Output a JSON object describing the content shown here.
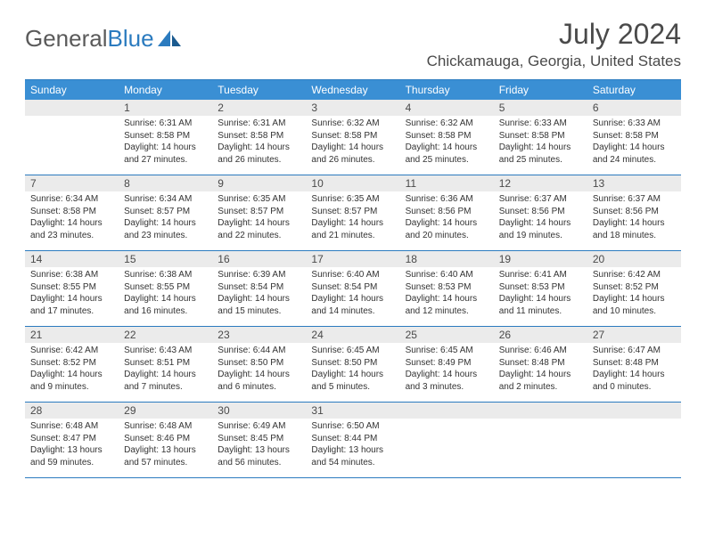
{
  "logo": {
    "text1": "General",
    "text2": "Blue"
  },
  "title": "July 2024",
  "location": "Chickamauga, Georgia, United States",
  "colors": {
    "header_bg": "#3a8fd4",
    "border": "#2b7bbf",
    "daynum_bg": "#ebebeb",
    "text": "#4a4a4a"
  },
  "day_names": [
    "Sunday",
    "Monday",
    "Tuesday",
    "Wednesday",
    "Thursday",
    "Friday",
    "Saturday"
  ],
  "weeks": [
    [
      {
        "num": "",
        "lines": []
      },
      {
        "num": "1",
        "lines": [
          "Sunrise: 6:31 AM",
          "Sunset: 8:58 PM",
          "Daylight: 14 hours and 27 minutes."
        ]
      },
      {
        "num": "2",
        "lines": [
          "Sunrise: 6:31 AM",
          "Sunset: 8:58 PM",
          "Daylight: 14 hours and 26 minutes."
        ]
      },
      {
        "num": "3",
        "lines": [
          "Sunrise: 6:32 AM",
          "Sunset: 8:58 PM",
          "Daylight: 14 hours and 26 minutes."
        ]
      },
      {
        "num": "4",
        "lines": [
          "Sunrise: 6:32 AM",
          "Sunset: 8:58 PM",
          "Daylight: 14 hours and 25 minutes."
        ]
      },
      {
        "num": "5",
        "lines": [
          "Sunrise: 6:33 AM",
          "Sunset: 8:58 PM",
          "Daylight: 14 hours and 25 minutes."
        ]
      },
      {
        "num": "6",
        "lines": [
          "Sunrise: 6:33 AM",
          "Sunset: 8:58 PM",
          "Daylight: 14 hours and 24 minutes."
        ]
      }
    ],
    [
      {
        "num": "7",
        "lines": [
          "Sunrise: 6:34 AM",
          "Sunset: 8:58 PM",
          "Daylight: 14 hours and 23 minutes."
        ]
      },
      {
        "num": "8",
        "lines": [
          "Sunrise: 6:34 AM",
          "Sunset: 8:57 PM",
          "Daylight: 14 hours and 23 minutes."
        ]
      },
      {
        "num": "9",
        "lines": [
          "Sunrise: 6:35 AM",
          "Sunset: 8:57 PM",
          "Daylight: 14 hours and 22 minutes."
        ]
      },
      {
        "num": "10",
        "lines": [
          "Sunrise: 6:35 AM",
          "Sunset: 8:57 PM",
          "Daylight: 14 hours and 21 minutes."
        ]
      },
      {
        "num": "11",
        "lines": [
          "Sunrise: 6:36 AM",
          "Sunset: 8:56 PM",
          "Daylight: 14 hours and 20 minutes."
        ]
      },
      {
        "num": "12",
        "lines": [
          "Sunrise: 6:37 AM",
          "Sunset: 8:56 PM",
          "Daylight: 14 hours and 19 minutes."
        ]
      },
      {
        "num": "13",
        "lines": [
          "Sunrise: 6:37 AM",
          "Sunset: 8:56 PM",
          "Daylight: 14 hours and 18 minutes."
        ]
      }
    ],
    [
      {
        "num": "14",
        "lines": [
          "Sunrise: 6:38 AM",
          "Sunset: 8:55 PM",
          "Daylight: 14 hours and 17 minutes."
        ]
      },
      {
        "num": "15",
        "lines": [
          "Sunrise: 6:38 AM",
          "Sunset: 8:55 PM",
          "Daylight: 14 hours and 16 minutes."
        ]
      },
      {
        "num": "16",
        "lines": [
          "Sunrise: 6:39 AM",
          "Sunset: 8:54 PM",
          "Daylight: 14 hours and 15 minutes."
        ]
      },
      {
        "num": "17",
        "lines": [
          "Sunrise: 6:40 AM",
          "Sunset: 8:54 PM",
          "Daylight: 14 hours and 14 minutes."
        ]
      },
      {
        "num": "18",
        "lines": [
          "Sunrise: 6:40 AM",
          "Sunset: 8:53 PM",
          "Daylight: 14 hours and 12 minutes."
        ]
      },
      {
        "num": "19",
        "lines": [
          "Sunrise: 6:41 AM",
          "Sunset: 8:53 PM",
          "Daylight: 14 hours and 11 minutes."
        ]
      },
      {
        "num": "20",
        "lines": [
          "Sunrise: 6:42 AM",
          "Sunset: 8:52 PM",
          "Daylight: 14 hours and 10 minutes."
        ]
      }
    ],
    [
      {
        "num": "21",
        "lines": [
          "Sunrise: 6:42 AM",
          "Sunset: 8:52 PM",
          "Daylight: 14 hours and 9 minutes."
        ]
      },
      {
        "num": "22",
        "lines": [
          "Sunrise: 6:43 AM",
          "Sunset: 8:51 PM",
          "Daylight: 14 hours and 7 minutes."
        ]
      },
      {
        "num": "23",
        "lines": [
          "Sunrise: 6:44 AM",
          "Sunset: 8:50 PM",
          "Daylight: 14 hours and 6 minutes."
        ]
      },
      {
        "num": "24",
        "lines": [
          "Sunrise: 6:45 AM",
          "Sunset: 8:50 PM",
          "Daylight: 14 hours and 5 minutes."
        ]
      },
      {
        "num": "25",
        "lines": [
          "Sunrise: 6:45 AM",
          "Sunset: 8:49 PM",
          "Daylight: 14 hours and 3 minutes."
        ]
      },
      {
        "num": "26",
        "lines": [
          "Sunrise: 6:46 AM",
          "Sunset: 8:48 PM",
          "Daylight: 14 hours and 2 minutes."
        ]
      },
      {
        "num": "27",
        "lines": [
          "Sunrise: 6:47 AM",
          "Sunset: 8:48 PM",
          "Daylight: 14 hours and 0 minutes."
        ]
      }
    ],
    [
      {
        "num": "28",
        "lines": [
          "Sunrise: 6:48 AM",
          "Sunset: 8:47 PM",
          "Daylight: 13 hours and 59 minutes."
        ]
      },
      {
        "num": "29",
        "lines": [
          "Sunrise: 6:48 AM",
          "Sunset: 8:46 PM",
          "Daylight: 13 hours and 57 minutes."
        ]
      },
      {
        "num": "30",
        "lines": [
          "Sunrise: 6:49 AM",
          "Sunset: 8:45 PM",
          "Daylight: 13 hours and 56 minutes."
        ]
      },
      {
        "num": "31",
        "lines": [
          "Sunrise: 6:50 AM",
          "Sunset: 8:44 PM",
          "Daylight: 13 hours and 54 minutes."
        ]
      },
      {
        "num": "",
        "lines": []
      },
      {
        "num": "",
        "lines": []
      },
      {
        "num": "",
        "lines": []
      }
    ]
  ]
}
